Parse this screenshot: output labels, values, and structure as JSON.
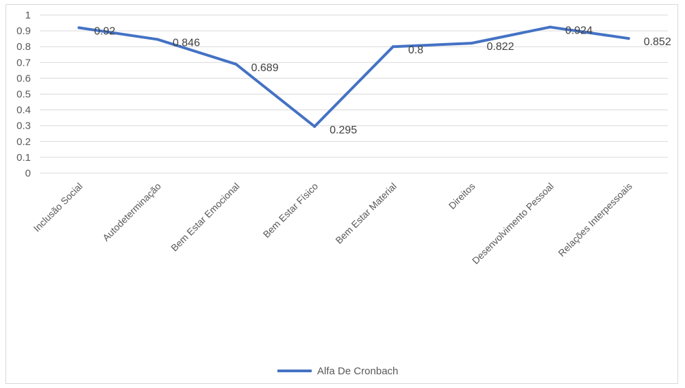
{
  "chart_data": {
    "type": "line",
    "categories": [
      "Inclusão Social",
      "Autodeterminação",
      "Bem Estar Emocional",
      "Bem Estar Físico",
      "Bem Estar Material",
      "Direitos",
      "Desenvolvimento Pessoal",
      "Relações Interpessoais"
    ],
    "series": [
      {
        "name": "Alfa De Cronbach",
        "values": [
          0.92,
          0.846,
          0.689,
          0.295,
          0.8,
          0.822,
          0.924,
          0.852
        ],
        "data_labels": [
          "0.92",
          "0.846",
          "0.689",
          "0.295",
          "0.8",
          "0.822",
          "0.924",
          "0.852"
        ]
      }
    ],
    "ylim": [
      0,
      1
    ],
    "yticks": [
      "0",
      "0.1",
      "0.2",
      "0.3",
      "0.4",
      "0.5",
      "0.6",
      "0.7",
      "0.8",
      "0.9",
      "1"
    ],
    "grid": true,
    "legend": "bottom",
    "line_color": "#4472C4",
    "grid_color": "#d9d9d9"
  }
}
